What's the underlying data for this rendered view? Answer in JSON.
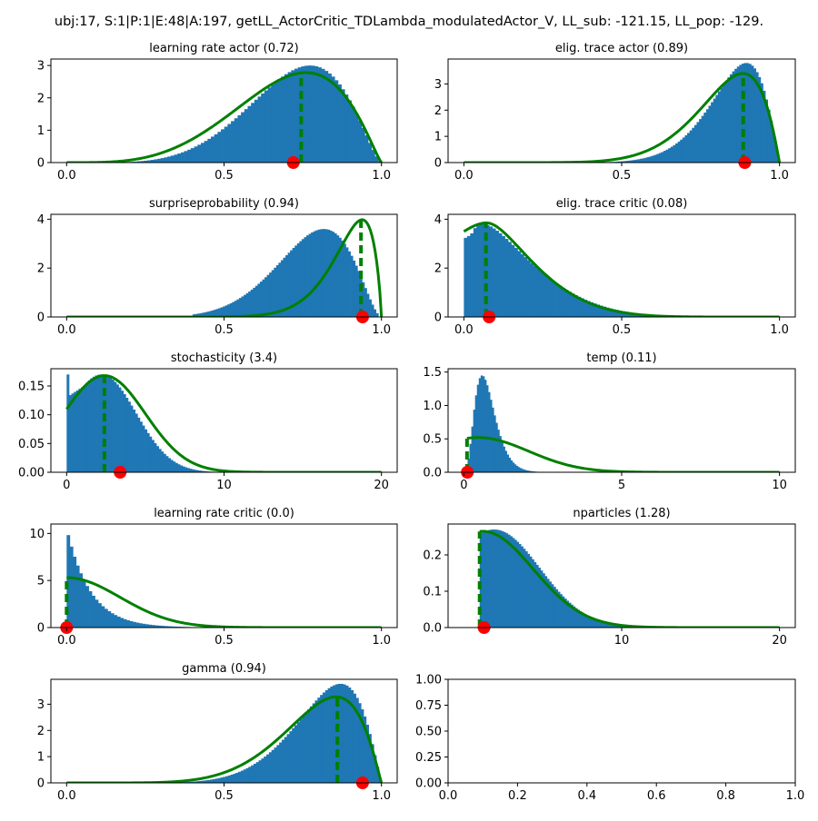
{
  "figure_title": "ubj:17, S:1|P:1|E:48|A:197, getLL_ActorCritic_TDLambda_modulatedActor_V, LL_sub: -121.15, LL_pop: -129.",
  "colors": {
    "hist": "#1f77b4",
    "curve": "#008000",
    "marker": "#ff0000",
    "axes": "#000000"
  },
  "chart_data": [
    {
      "type": "bar",
      "title": "learning rate actor (0.72)",
      "xlim": [
        -0.05,
        1.05
      ],
      "ylim": [
        0,
        3.2
      ],
      "xticks": [
        0,
        0.5,
        1
      ],
      "xtick_labels": [
        "0.0",
        "0.5",
        "1.0"
      ],
      "yticks": [
        0,
        1,
        2,
        3
      ],
      "ytick_labels": [
        "0",
        "1",
        "2",
        "3"
      ],
      "hist": {
        "kind": "beta",
        "a": 6.1,
        "b": 2.5,
        "peak": 3.0,
        "range": [
          0.15,
          1.0
        ],
        "bins": 80
      },
      "curve": {
        "kind": "beta",
        "a": 4.8,
        "b": 2.2,
        "peak": 2.78,
        "range": [
          0,
          1
        ]
      },
      "dashed_x": 0.745,
      "marker_x": 0.72
    },
    {
      "type": "bar",
      "title": "elig. trace actor (0.89)",
      "xlim": [
        -0.05,
        1.05
      ],
      "ylim": [
        0,
        3.95
      ],
      "xticks": [
        0,
        0.5,
        1
      ],
      "xtick_labels": [
        "0.0",
        "0.5",
        "1.0"
      ],
      "yticks": [
        0,
        1,
        2,
        3
      ],
      "ytick_labels": [
        "0",
        "1",
        "2",
        "3"
      ],
      "hist": {
        "kind": "beta",
        "a": 12,
        "b": 2.3,
        "peak": 3.8,
        "range": [
          0.4,
          1.0
        ],
        "bins": 80
      },
      "curve": {
        "kind": "beta",
        "a": 9,
        "b": 2.05,
        "peak": 3.4,
        "range": [
          0,
          1
        ]
      },
      "dashed_x": 0.885,
      "marker_x": 0.89
    },
    {
      "type": "bar",
      "title": "surpriseprobability (0.94)",
      "xlim": [
        -0.05,
        1.05
      ],
      "ylim": [
        0,
        4.2
      ],
      "xticks": [
        0,
        0.5,
        1
      ],
      "xtick_labels": [
        "0.0",
        "0.5",
        "1.0"
      ],
      "yticks": [
        0,
        2,
        4
      ],
      "ytick_labels": [
        "0",
        "2",
        "4"
      ],
      "hist": {
        "kind": "beta",
        "a": 9,
        "b": 2.8,
        "peak": 3.6,
        "range": [
          0.4,
          0.99
        ],
        "bins": 80
      },
      "curve": {
        "kind": "beta",
        "a": 14,
        "b": 1.85,
        "peak": 3.98,
        "range": [
          0,
          1
        ]
      },
      "dashed_x": 0.935,
      "marker_x": 0.94
    },
    {
      "type": "bar",
      "title": "elig. trace critic (0.08)",
      "xlim": [
        -0.05,
        1.05
      ],
      "ylim": [
        0,
        4.2
      ],
      "xticks": [
        0,
        0.5,
        1
      ],
      "xtick_labels": [
        "0.0",
        "0.5",
        "1.0"
      ],
      "yticks": [
        0,
        2,
        4
      ],
      "ytick_labels": [
        "0",
        "2",
        "4"
      ],
      "hist": {
        "kind": "beta",
        "a": 1.35,
        "b": 6.5,
        "peak": 3.8,
        "range": [
          0.0,
          0.7
        ],
        "bins": 70,
        "floor": 3.2
      },
      "curve": {
        "kind": "beta",
        "a": 1.5,
        "b": 7.4,
        "peak": 3.85,
        "range": [
          0,
          1
        ],
        "clamp_left": 3.5
      },
      "dashed_x": 0.07,
      "marker_x": 0.08
    },
    {
      "type": "bar",
      "title": "stochasticity (3.4)",
      "xlim": [
        -1,
        21
      ],
      "ylim": [
        0,
        0.18
      ],
      "xticks": [
        0,
        10,
        20
      ],
      "xtick_labels": [
        "0",
        "10",
        "20"
      ],
      "yticks": [
        0,
        0.05,
        0.1,
        0.15
      ],
      "ytick_labels": [
        "0.00",
        "0.05",
        "0.10",
        "0.15"
      ],
      "hist": {
        "kind": "gauss",
        "mu": 2.2,
        "sigma": 2.2,
        "peak": 0.17,
        "range": [
          0,
          12
        ],
        "bins": 80,
        "floor": 0.13,
        "spike": 0.17
      },
      "curve": {
        "kind": "gauss",
        "mu": 2.4,
        "sigma": 2.6,
        "peak": 0.168,
        "range": [
          0,
          20
        ]
      },
      "dashed_x": 2.4,
      "marker_x": 3.4
    },
    {
      "type": "bar",
      "title": "temp (0.11)",
      "xlim": [
        -0.5,
        10.5
      ],
      "ylim": [
        0,
        1.55
      ],
      "xticks": [
        0,
        5,
        10
      ],
      "xtick_labels": [
        "0",
        "5",
        "10"
      ],
      "yticks": [
        0,
        0.5,
        1,
        1.5
      ],
      "ytick_labels": [
        "0.0",
        "0.5",
        "1.0",
        "1.5"
      ],
      "hist": {
        "kind": "gamma",
        "k": 4.2,
        "theta": 0.18,
        "peak": 1.45,
        "range": [
          0.0,
          2.6
        ],
        "bins": 44
      },
      "curve": {
        "kind": "gauss",
        "mu": 0.45,
        "sigma": 1.6,
        "peak": 0.52,
        "range": [
          0.1,
          10
        ]
      },
      "dashed_x": 0.1,
      "marker_x": 0.11
    },
    {
      "type": "bar",
      "title": "learning rate critic (0.0)",
      "xlim": [
        -0.05,
        1.05
      ],
      "ylim": [
        0,
        11
      ],
      "xticks": [
        0,
        0.5,
        1
      ],
      "xtick_labels": [
        "0.0",
        "0.5",
        "1.0"
      ],
      "yticks": [
        0,
        5,
        10
      ],
      "ytick_labels": [
        "0",
        "5",
        "10"
      ],
      "hist": {
        "kind": "exp",
        "scale": 0.075,
        "peak": 10.5,
        "range": [
          0.0,
          0.45
        ],
        "bins": 45
      },
      "curve": {
        "kind": "gauss",
        "mu": 0.0,
        "sigma": 0.17,
        "peak": 5.3,
        "range": [
          0,
          1
        ]
      },
      "dashed_x": 0.0,
      "marker_x": 0.0
    },
    {
      "type": "bar",
      "title": "nparticles (1.28)",
      "xlim": [
        -1,
        21
      ],
      "ylim": [
        0,
        0.285
      ],
      "xticks": [
        10,
        20
      ],
      "xtick_labels": [
        "10",
        "20"
      ],
      "yticks": [
        0,
        0.1,
        0.2
      ],
      "ytick_labels": [
        "0.0",
        "0.1",
        "0.2"
      ],
      "hist": {
        "kind": "gauss",
        "mu": 1.9,
        "sigma": 2.9,
        "peak": 0.27,
        "range": [
          1,
          12
        ],
        "bins": 80
      },
      "curve": {
        "kind": "gauss",
        "mu": 1.2,
        "sigma": 3.2,
        "peak": 0.265,
        "range": [
          1,
          20
        ]
      },
      "dashed_x": 1.0,
      "marker_x": 1.28
    },
    {
      "type": "bar",
      "title": "gamma (0.94)",
      "xlim": [
        -0.05,
        1.05
      ],
      "ylim": [
        0,
        3.95
      ],
      "xticks": [
        0,
        0.5,
        1
      ],
      "xtick_labels": [
        "0.0",
        "0.5",
        "1.0"
      ],
      "yticks": [
        0,
        1,
        2,
        3
      ],
      "ytick_labels": [
        "0",
        "1",
        "2",
        "3"
      ],
      "hist": {
        "kind": "beta",
        "a": 9,
        "b": 2.2,
        "peak": 3.78,
        "range": [
          0.35,
          1.0
        ],
        "bins": 80
      },
      "curve": {
        "kind": "beta",
        "a": 7.5,
        "b": 2.1,
        "peak": 3.28,
        "range": [
          0,
          1
        ]
      },
      "dashed_x": 0.86,
      "marker_x": 0.94
    },
    {
      "type": "bar",
      "title": "",
      "xlim": [
        0,
        1
      ],
      "ylim": [
        0,
        1
      ],
      "xticks": [
        0,
        0.2,
        0.4,
        0.6,
        0.8,
        1
      ],
      "xtick_labels": [
        "0.0",
        "0.2",
        "0.4",
        "0.6",
        "0.8",
        "1.0"
      ],
      "yticks": [
        0,
        0.25,
        0.5,
        0.75,
        1
      ],
      "ytick_labels": [
        "0.00",
        "0.25",
        "0.50",
        "0.75",
        "1.00"
      ],
      "empty": true
    }
  ]
}
